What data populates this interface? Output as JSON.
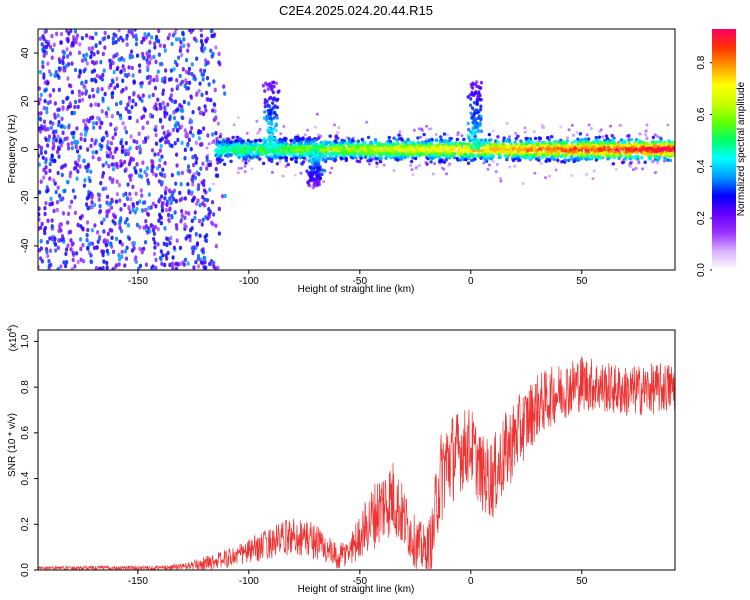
{
  "title": "C2E4.2025.024.20.44.R15",
  "chart_data": [
    {
      "type": "heatmap",
      "title": "C2E4.2025.024.20.44.R15",
      "xlabel": "Height of straight line (km)",
      "ylabel": "Frequency (Hz)",
      "xlim": [
        -195,
        92
      ],
      "ylim": [
        -50,
        50
      ],
      "xticks": [
        -150,
        -100,
        -50,
        0,
        50
      ],
      "yticks": [
        -40,
        -20,
        0,
        20,
        40
      ],
      "grid": false,
      "colorbar": {
        "label": "Normalized spectral amplitude",
        "range": [
          0,
          0.93
        ],
        "ticks": [
          0.0,
          0.2,
          0.4,
          0.6,
          0.8
        ],
        "colormap": [
          "#ffffff",
          "#d9b3ff",
          "#9933ff",
          "#6600ff",
          "#0000ff",
          "#0099ff",
          "#00ffff",
          "#00ff66",
          "#66ff00",
          "#ccff00",
          "#ffff00",
          "#ff9900",
          "#ff3300",
          "#ff0066"
        ]
      },
      "features": {
        "noise_region_x": [
          -195,
          -120
        ],
        "signal_band_center_hz": 0,
        "signal_band_halfwidth_hz": 6,
        "bursts": [
          {
            "x": -90,
            "peak_hz": 28
          },
          {
            "x": 2,
            "peak_hz": 28
          },
          {
            "x": -70,
            "peak_hz": -15
          }
        ]
      }
    },
    {
      "type": "line",
      "xlabel": "Height of straight line (km)",
      "ylabel": "SNR (10 * v/v)",
      "exponent_label": "(x10",
      "exponent_sup": "4",
      "xlim": [
        -195,
        92
      ],
      "ylim": [
        0,
        1.05
      ],
      "xticks": [
        -150,
        -100,
        -50,
        0,
        50
      ],
      "yticks": [
        0.0,
        0.2,
        0.4,
        0.6,
        0.8,
        1.0
      ],
      "ytick_labels": [
        "0.0",
        "0.2",
        "0.4",
        "0.6",
        "0.8",
        "1.0"
      ],
      "color": "#ee3333",
      "series": [
        {
          "x": [
            -195,
            -170,
            -150,
            -140,
            -130,
            -125,
            -120,
            -110,
            -100,
            -90,
            -80,
            -75,
            -70,
            -65,
            -60,
            -55,
            -50,
            -45,
            -40,
            -35,
            -30,
            -25,
            -20,
            -17,
            -15,
            -12,
            -10,
            -5,
            0,
            5,
            10,
            15,
            20,
            25,
            30,
            40,
            50,
            60,
            70,
            80,
            92
          ],
          "values": [
            0.01,
            0.01,
            0.01,
            0.01,
            0.015,
            0.02,
            0.03,
            0.05,
            0.08,
            0.12,
            0.15,
            0.14,
            0.13,
            0.09,
            0.05,
            0.08,
            0.15,
            0.22,
            0.28,
            0.32,
            0.22,
            0.12,
            0.08,
            0.15,
            0.35,
            0.45,
            0.48,
            0.52,
            0.55,
            0.42,
            0.4,
            0.5,
            0.58,
            0.65,
            0.72,
            0.78,
            0.82,
            0.8,
            0.78,
            0.79,
            0.8
          ],
          "noise_amplitude": [
            0.005,
            0.006,
            0.006,
            0.007,
            0.01,
            0.015,
            0.02,
            0.03,
            0.04,
            0.05,
            0.06,
            0.06,
            0.06,
            0.05,
            0.04,
            0.05,
            0.07,
            0.1,
            0.12,
            0.12,
            0.1,
            0.08,
            0.08,
            0.1,
            0.15,
            0.15,
            0.15,
            0.13,
            0.12,
            0.12,
            0.13,
            0.13,
            0.12,
            0.11,
            0.1,
            0.09,
            0.09,
            0.08,
            0.08,
            0.08,
            0.08
          ]
        }
      ]
    }
  ]
}
